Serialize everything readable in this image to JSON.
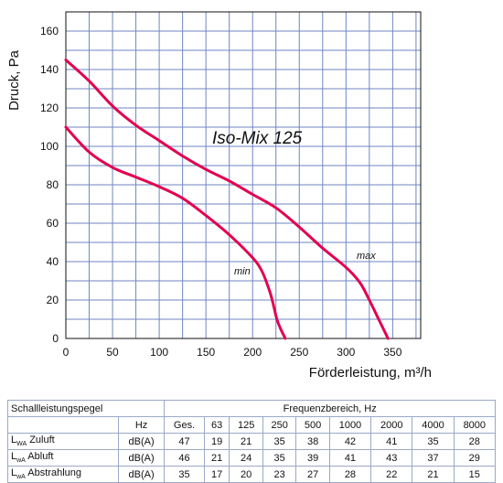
{
  "chart_data": {
    "type": "line",
    "title": "Iso-Mix 125",
    "xlabel": "Förderleistung, m³/h",
    "ylabel": "Druck, Pa",
    "xlim": [
      0,
      380
    ],
    "ylim": [
      0,
      170
    ],
    "xticks": [
      0,
      50,
      100,
      150,
      200,
      250,
      300,
      350
    ],
    "yticks": [
      0,
      20,
      40,
      60,
      80,
      100,
      120,
      140,
      160
    ],
    "grid": true,
    "series": [
      {
        "name": "max",
        "color": "#e3004f",
        "x": [
          0,
          25,
          50,
          75,
          100,
          125,
          150,
          175,
          200,
          225,
          250,
          275,
          300,
          315,
          325,
          335,
          345
        ],
        "y": [
          145,
          134,
          121,
          111,
          103,
          95,
          88,
          82,
          75,
          68,
          58,
          47,
          37,
          29,
          20,
          10,
          0
        ]
      },
      {
        "name": "min",
        "color": "#e3004f",
        "x": [
          0,
          25,
          50,
          75,
          100,
          125,
          150,
          175,
          200,
          210,
          218,
          222,
          226,
          230,
          235
        ],
        "y": [
          110,
          97,
          89,
          84,
          79,
          73,
          64,
          54,
          42,
          35,
          25,
          18,
          10,
          5,
          0
        ]
      }
    ]
  },
  "table": {
    "title": "Schallleistungspegel",
    "freq_header": "Frequenzbereich, Hz",
    "unit_header": "Hz",
    "columns": [
      "Ges.",
      "63",
      "125",
      "250",
      "500",
      "1000",
      "2000",
      "4000",
      "8000"
    ],
    "rows": [
      {
        "label_main": "L",
        "label_sub": "WA",
        "label_rest": " Zuluft",
        "unit": "dB(A)",
        "values": [
          "47",
          "19",
          "21",
          "35",
          "38",
          "42",
          "41",
          "35",
          "28"
        ]
      },
      {
        "label_main": "L",
        "label_sub": "wA",
        "label_rest": " Abluft",
        "unit": "dB(A)",
        "values": [
          "46",
          "21",
          "24",
          "35",
          "39",
          "41",
          "43",
          "37",
          "29"
        ]
      },
      {
        "label_main": "L",
        "label_sub": "wA",
        "label_rest": " Abstrahlung",
        "unit": "dB(A)",
        "values": [
          "35",
          "17",
          "20",
          "23",
          "27",
          "28",
          "22",
          "21",
          "15"
        ]
      }
    ]
  }
}
